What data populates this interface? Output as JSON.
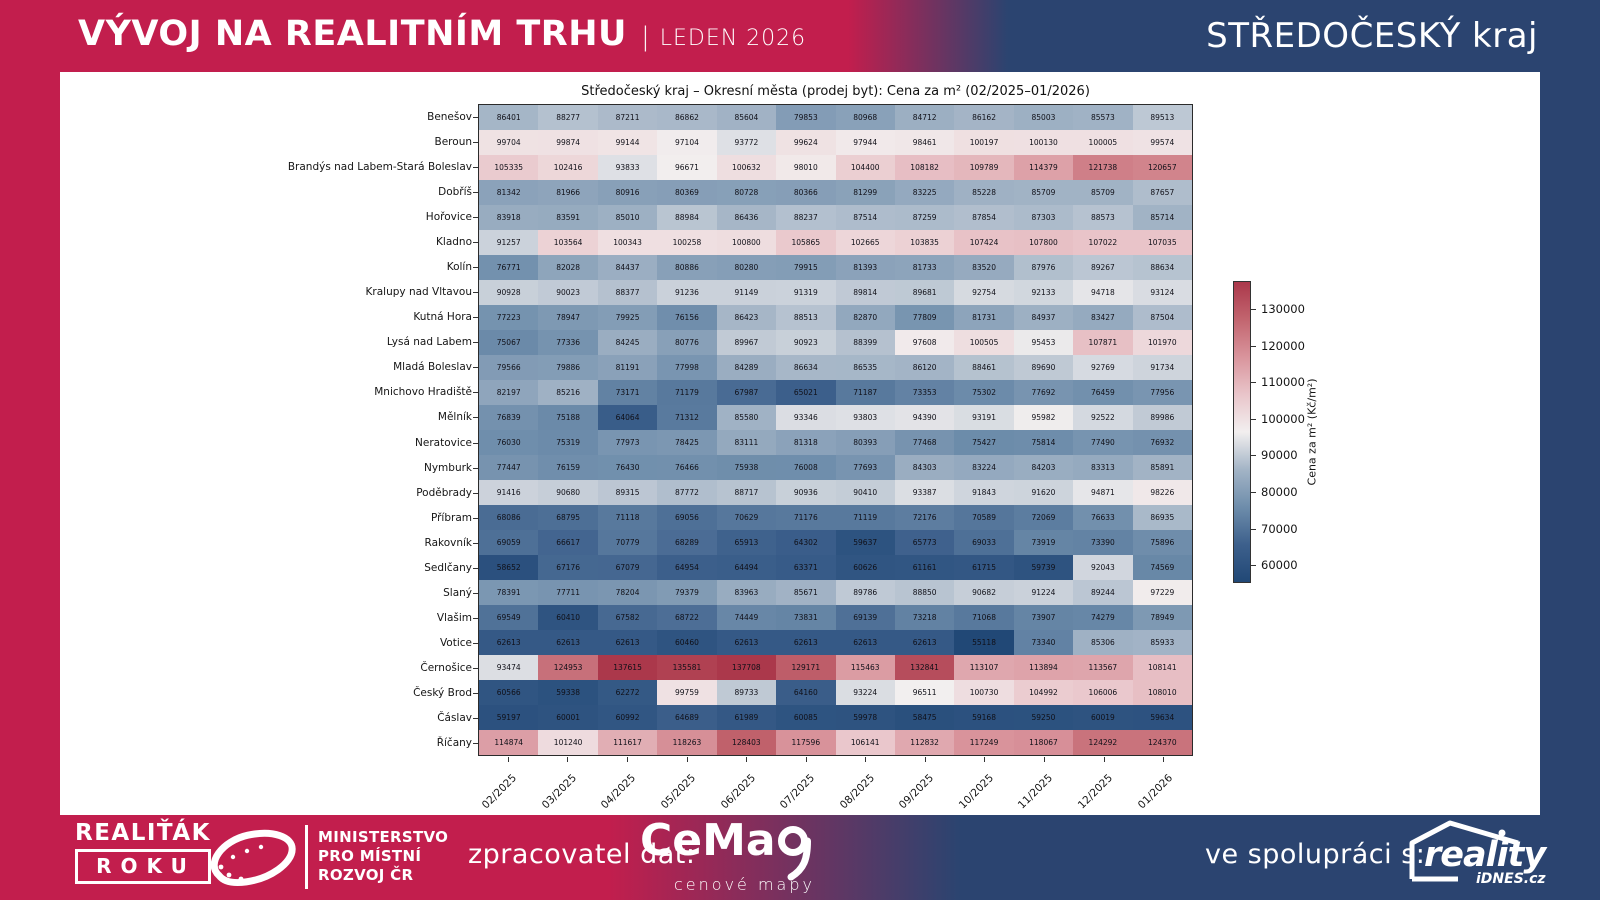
{
  "colors": {
    "crimson": "#c21e4d",
    "navy": "#2b4470",
    "panel": "#ffffff",
    "cell_text": "#101018"
  },
  "header": {
    "title": "VÝVOJ NA REALITNÍM TRHU",
    "divider": "|",
    "period": "LEDEN 2026",
    "region": "STŘEDOČESKÝ kraj"
  },
  "chart_data": {
    "type": "heatmap",
    "title": "Středočeský kraj – Okresní města (prodej byt): Cena za m² (02/2025–01/2026)",
    "x_labels": [
      "02/2025",
      "03/2025",
      "04/2025",
      "05/2025",
      "06/2025",
      "07/2025",
      "08/2025",
      "09/2025",
      "10/2025",
      "11/2025",
      "12/2025",
      "01/2026"
    ],
    "row_labels": [
      "Benešov",
      "Beroun",
      "Brandýs nad Labem-Stará Boleslav",
      "Dobříš",
      "Hořovice",
      "Kladno",
      "Kolín",
      "Kralupy nad Vltavou",
      "Kutná Hora",
      "Lysá nad Labem",
      "Mladá Boleslav",
      "Mnichovo Hradiště",
      "Mělník",
      "Neratovice",
      "Nymburk",
      "Poděbrady",
      "Příbram",
      "Rakovník",
      "Sedlčany",
      "Slaný",
      "Vlašim",
      "Votice",
      "Černošice",
      "Český Brod",
      "Čáslav",
      "Říčany"
    ],
    "values": [
      [
        86401,
        88277,
        87211,
        86862,
        85604,
        79853,
        80968,
        84712,
        86162,
        85003,
        85573,
        89513
      ],
      [
        99704,
        99874,
        99144,
        97104,
        93772,
        99624,
        97944,
        98461,
        100197,
        100130,
        100005,
        99574
      ],
      [
        105335,
        102416,
        93833,
        96671,
        100632,
        98010,
        104400,
        108182,
        109789,
        114379,
        121738,
        120657
      ],
      [
        81342,
        81966,
        80916,
        80369,
        80728,
        80366,
        81299,
        83225,
        85228,
        85709,
        85709,
        87657
      ],
      [
        83918,
        83591,
        85010,
        88984,
        86436,
        88237,
        87514,
        87259,
        87854,
        87303,
        88573,
        85714
      ],
      [
        91257,
        103564,
        100343,
        100258,
        100800,
        105865,
        102665,
        103835,
        107424,
        107800,
        107022,
        107035
      ],
      [
        76771,
        82028,
        84437,
        80886,
        80280,
        79915,
        81393,
        81733,
        83520,
        87976,
        89267,
        88634
      ],
      [
        90928,
        90023,
        88377,
        91236,
        91149,
        91319,
        89814,
        89681,
        92754,
        92133,
        94718,
        93124
      ],
      [
        77223,
        78947,
        79925,
        76156,
        86423,
        88513,
        82870,
        77809,
        81731,
        84937,
        83427,
        87504
      ],
      [
        75067,
        77336,
        84245,
        80776,
        89967,
        90923,
        88399,
        97608,
        100505,
        95453,
        107871,
        101970
      ],
      [
        79566,
        79886,
        81191,
        77998,
        84289,
        86634,
        86535,
        86120,
        88461,
        89690,
        92769,
        91734
      ],
      [
        82197,
        85216,
        73171,
        71179,
        67987,
        65021,
        71187,
        73353,
        75302,
        77692,
        76459,
        77956
      ],
      [
        76839,
        75188,
        64064,
        71312,
        85580,
        93346,
        93803,
        94390,
        93191,
        95982,
        92522,
        89986
      ],
      [
        76030,
        75319,
        77973,
        78425,
        83111,
        81318,
        80393,
        77468,
        75427,
        75814,
        77490,
        76932
      ],
      [
        77447,
        76159,
        76430,
        76466,
        75938,
        76008,
        77693,
        84303,
        83224,
        84203,
        83313,
        85891
      ],
      [
        91416,
        90680,
        89315,
        87772,
        88717,
        90936,
        90410,
        93387,
        91843,
        91620,
        94871,
        98226
      ],
      [
        68086,
        68795,
        71118,
        69056,
        70629,
        71176,
        71119,
        72176,
        70589,
        72069,
        76633,
        86935
      ],
      [
        69059,
        66617,
        70779,
        68289,
        65913,
        64302,
        59637,
        65773,
        69033,
        73919,
        73390,
        75896
      ],
      [
        58652,
        67176,
        67079,
        64954,
        64494,
        63371,
        60626,
        61161,
        61715,
        59739,
        92043,
        74569
      ],
      [
        78391,
        77711,
        78204,
        79379,
        83963,
        85671,
        89786,
        88850,
        90682,
        91224,
        89244,
        97229
      ],
      [
        69549,
        60410,
        67582,
        68722,
        74449,
        73831,
        69139,
        73218,
        71068,
        73907,
        74279,
        78949
      ],
      [
        62613,
        62613,
        62613,
        60460,
        62613,
        62613,
        62613,
        62613,
        55118,
        73340,
        85306,
        85933
      ],
      [
        93474,
        124953,
        137615,
        135581,
        137708,
        129171,
        115463,
        132841,
        113107,
        113894,
        113567,
        108141
      ],
      [
        60566,
        59338,
        62272,
        99759,
        89733,
        64160,
        93224,
        96511,
        100730,
        104992,
        106006,
        108010
      ],
      [
        59197,
        60001,
        60992,
        64689,
        61989,
        60085,
        59978,
        58475,
        59168,
        59250,
        60019,
        59634
      ],
      [
        114874,
        101240,
        111617,
        118263,
        128403,
        117596,
        106141,
        112832,
        117249,
        118067,
        124292,
        124370
      ]
    ],
    "colorbar": {
      "label": "Cena za m² (Kč/m²)",
      "ticks": [
        130000,
        120000,
        110000,
        100000,
        90000,
        80000,
        70000,
        60000
      ],
      "vmin": 55118,
      "vmax": 137708
    },
    "colormap_stops": [
      [
        0.0,
        "#214876"
      ],
      [
        0.125,
        "#3d608c"
      ],
      [
        0.25,
        "#6e8dab"
      ],
      [
        0.375,
        "#a3b4c6"
      ],
      [
        0.5,
        "#f2efef"
      ],
      [
        0.625,
        "#e9c5ca"
      ],
      [
        0.75,
        "#d9949c"
      ],
      [
        0.875,
        "#c2656f"
      ],
      [
        1.0,
        "#ab384b"
      ]
    ],
    "legend_position": "right",
    "grid": false
  },
  "footer": {
    "realitak_line1": "REALIŤÁK",
    "realitak_line2": "ROKU",
    "ministry_lines": [
      "MINISTERSTVO",
      "PRO MÍSTNÍ",
      "ROZVOJ ČR"
    ],
    "processor_label": "zpracovatel dat:",
    "cemap_name": "CeMa",
    "cemap_tagline": "cenové mapy",
    "partner_label": "ve spolupráci s:",
    "partner_name": "reality",
    "partner_sub": "iDNES.cz"
  }
}
